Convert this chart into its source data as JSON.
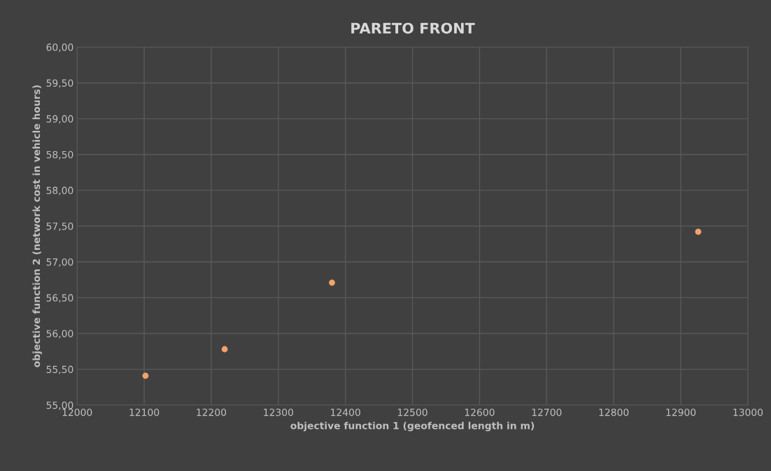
{
  "chart_data": {
    "type": "scatter",
    "title": "PARETO FRONT",
    "xlabel": "objective function 1 (geofenced length in m)",
    "ylabel": "objective function 2 (network cost in vehicle hours)",
    "x": [
      12102,
      12220,
      12380,
      12926
    ],
    "series": [
      {
        "color": "#f2a26b",
        "values": [
          55.41,
          55.78,
          56.71,
          57.42
        ]
      }
    ],
    "xlim": [
      12000,
      13000
    ],
    "xticks": [
      12000,
      12100,
      12200,
      12300,
      12400,
      12500,
      12600,
      12700,
      12800,
      12900,
      13000
    ],
    "ylim": [
      55,
      60
    ],
    "yticks": [
      {
        "value": 55,
        "label": "55,00"
      },
      {
        "value": 55.5,
        "label": "55,50"
      },
      {
        "value": 56,
        "label": "56,00"
      },
      {
        "value": 56.5,
        "label": "56,50"
      },
      {
        "value": 57,
        "label": "57,00"
      },
      {
        "value": 57.5,
        "label": "57,50"
      },
      {
        "value": 58,
        "label": "58,00"
      },
      {
        "value": 58.5,
        "label": "58,50"
      },
      {
        "value": 59,
        "label": "59,00"
      },
      {
        "value": 59.5,
        "label": "59,50"
      },
      {
        "value": 60,
        "label": "60,00"
      }
    ],
    "grid": true,
    "marker": "circle"
  }
}
